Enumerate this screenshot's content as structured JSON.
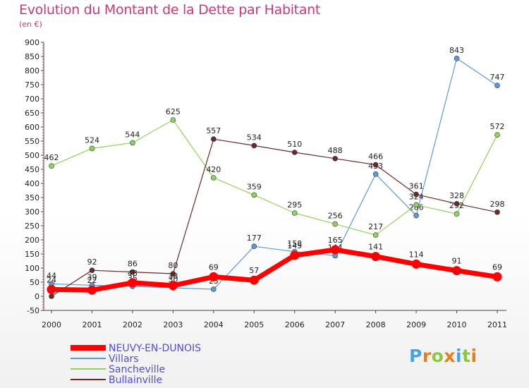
{
  "title": "Evolution du Montant de la Dette par Habitant",
  "unit_label": "(en €)",
  "logo": {
    "text": "Proxiti",
    "letters": [
      "P",
      "r",
      "o",
      "x",
      "i",
      "t",
      "i"
    ],
    "colors": [
      "#4aa3df",
      "#e87d1e",
      "#8dc63f",
      "#e87d1e",
      "#4aa3df",
      "#8dc63f",
      "#e87d1e"
    ]
  },
  "chart_data": {
    "type": "line",
    "title": "Evolution du Montant de la Dette par Habitant",
    "ylabel": "(en €)",
    "ylim": [
      -50,
      900
    ],
    "yticks": [
      -50,
      0,
      50,
      100,
      150,
      200,
      250,
      300,
      350,
      400,
      450,
      500,
      550,
      600,
      650,
      700,
      750,
      800,
      850,
      900
    ],
    "categories": [
      "2000",
      "2001",
      "2002",
      "2003",
      "2004",
      "2005",
      "2006",
      "2007",
      "2008",
      "2009",
      "2010",
      "2011"
    ],
    "grid": false,
    "legend_position": "bottom-left",
    "series": [
      {
        "name": "Villars",
        "color": "#5b9bd5",
        "width": 1.2,
        "marker": 3.5,
        "values": [
          44,
          39,
          35,
          30,
          25,
          177,
          158,
          144,
          433,
          286,
          843,
          747
        ],
        "labels": [
          "44",
          "39",
          "35",
          "30",
          "25",
          "177",
          "158",
          "144",
          "433",
          "286",
          "843",
          "747"
        ]
      },
      {
        "name": "Sancheville",
        "color": "#8ed45c",
        "width": 1.2,
        "marker": 3.5,
        "values": [
          462,
          524,
          544,
          625,
          420,
          359,
          295,
          256,
          217,
          324,
          292,
          572
        ],
        "labels": [
          "462",
          "524",
          "544",
          "625",
          "420",
          "359",
          "295",
          "256",
          "217",
          "324",
          "292",
          "572"
        ]
      },
      {
        "name": "Bullainville",
        "color": "#6b2a2a",
        "width": 1.2,
        "marker": 3.5,
        "values": [
          0,
          92,
          86,
          80,
          557,
          534,
          510,
          488,
          466,
          361,
          328,
          298
        ],
        "labels": [
          "",
          "92",
          "86",
          "80",
          "557",
          "534",
          "510",
          "488",
          "466",
          "361",
          "328",
          "298"
        ]
      },
      {
        "name": "NEUVY-EN-DUNOIS",
        "color": "#ff0000",
        "width": 7,
        "marker": 6.5,
        "values": [
          24,
          22,
          48,
          38,
          69,
          57,
          145,
          165,
          141,
          114,
          91,
          69
        ],
        "labels": [
          "24",
          "22",
          "48",
          "38",
          "69",
          "57",
          "145",
          "165",
          "141",
          "114",
          "91",
          "69"
        ]
      }
    ],
    "legend": [
      {
        "name": "NEUVY-EN-DUNOIS",
        "color": "#ff0000",
        "width": 8
      },
      {
        "name": "Villars",
        "color": "#5b9bd5",
        "width": 2
      },
      {
        "name": "Sancheville",
        "color": "#8ed45c",
        "width": 2
      },
      {
        "name": "Bullainville",
        "color": "#6b2a2a",
        "width": 2
      }
    ]
  }
}
